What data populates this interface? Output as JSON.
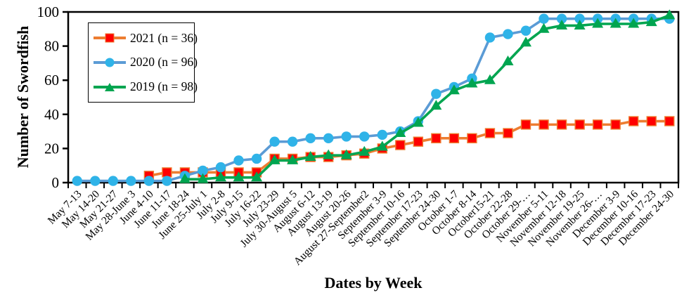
{
  "chart_data": {
    "type": "line",
    "title": "",
    "xlabel": "Dates by Week",
    "ylabel": "Number of Swordfish",
    "ylim": [
      0,
      100
    ],
    "yticks": [
      0,
      20,
      40,
      60,
      80,
      100
    ],
    "grid": false,
    "legend_position": "top-left",
    "categories": [
      "May 7-13",
      "May 14-20",
      "May 21-27",
      "May 28-June 3",
      "June 4-10",
      "June 11-17",
      "June 18-24",
      "June 25-July 1",
      "July 2-8",
      "July 9-15",
      "July 16-22",
      "July 23-29",
      "July 30-August 5",
      "August 6-12",
      "August 13-19",
      "August 20-26",
      "August 27-September2",
      "September 3-9",
      "September 10-16",
      "September 17-23",
      "September 24-30",
      "October 1-7",
      "October 8-14",
      "October15-21",
      "October 22-28",
      "October 29-…",
      "November 5-11",
      "November 12-18",
      "November 19-25",
      "November 26-…",
      "December 3-9",
      "December 10-16",
      "December 17-23",
      "December 24-30"
    ],
    "series": [
      {
        "name": "2021 (n = 36)",
        "marker": "square",
        "line_color": "#ED7D31",
        "marker_color": "#FF0000",
        "marker_edge_color": "#ED7D31",
        "values": [
          null,
          null,
          null,
          null,
          4,
          6,
          6,
          6,
          6,
          6,
          6,
          14,
          14,
          15,
          15,
          16,
          17,
          20,
          22,
          24,
          26,
          26,
          26,
          29,
          29,
          34,
          34,
          34,
          34,
          34,
          34,
          36,
          36,
          36
        ]
      },
      {
        "name": "2020 (n = 96)",
        "marker": "circle",
        "line_color": "#5B9BD5",
        "marker_color": "#2FB3E8",
        "marker_edge_color": "#2FB3E8",
        "values": [
          1,
          1,
          1,
          1,
          1,
          1,
          4,
          7,
          9,
          13,
          14,
          24,
          24,
          26,
          26,
          27,
          27,
          28,
          30,
          36,
          52,
          56,
          61,
          85,
          87,
          89,
          96,
          96,
          96,
          96,
          96,
          96,
          96,
          96
        ]
      },
      {
        "name": "2019 (n = 98)",
        "marker": "triangle",
        "line_color": "#00A550",
        "marker_color": "#00A550",
        "marker_edge_color": "#00A550",
        "values": [
          null,
          null,
          null,
          null,
          null,
          null,
          2,
          2,
          3,
          3,
          3,
          13,
          13,
          15,
          16,
          16,
          18,
          21,
          29,
          35,
          45,
          54,
          58,
          60,
          71,
          82,
          90,
          92,
          92,
          93,
          93,
          93,
          94,
          98
        ]
      }
    ],
    "axis_color": "#000000",
    "background_color": "#ffffff"
  }
}
